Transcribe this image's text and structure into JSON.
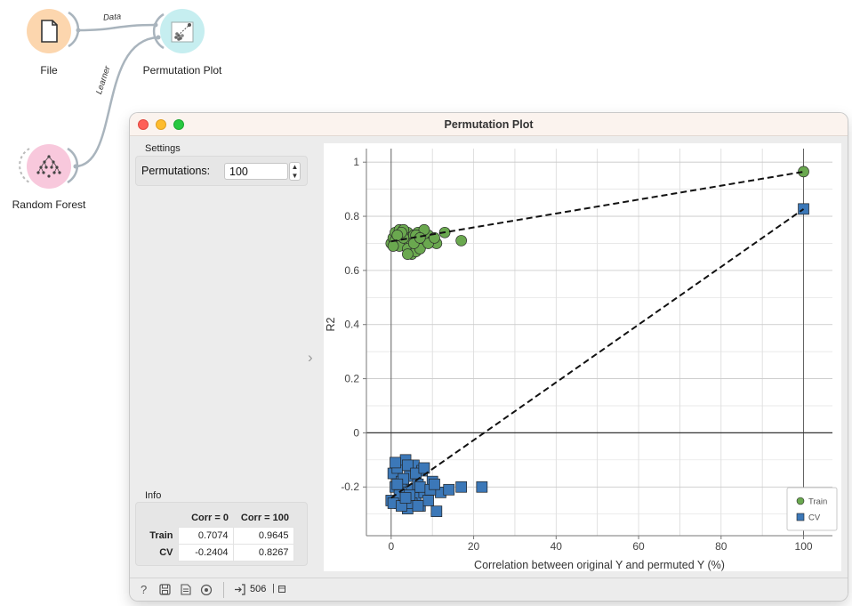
{
  "workflow": {
    "nodes": {
      "file": {
        "label": "File",
        "color": "#fcd6ae"
      },
      "permutation_plot": {
        "label": "Permutation Plot",
        "color": "#c6eef0"
      },
      "random_forest": {
        "label": "Random Forest",
        "color": "#f8c8dc"
      }
    },
    "links": {
      "data": "Data",
      "learner": "Learner"
    }
  },
  "window": {
    "title": "Permutation Plot"
  },
  "settings": {
    "group_label": "Settings",
    "permutations_label": "Permutations:",
    "permutations_value": "100"
  },
  "info": {
    "group_label": "Info",
    "headers": [
      "",
      "Corr = 0",
      "Corr = 100"
    ],
    "rows": [
      {
        "label": "Train",
        "corr0": "0.7074",
        "corr100": "0.9645"
      },
      {
        "label": "CV",
        "corr0": "-0.2404",
        "corr100": "0.8267"
      }
    ]
  },
  "status_bar": {
    "output_count": "506"
  },
  "chart_data": {
    "type": "scatter",
    "title": "",
    "xlabel": "Correlation between original Y and permuted Y (%)",
    "ylabel": "R2",
    "xlim": [
      -6,
      107
    ],
    "ylim": [
      -0.38,
      1.05
    ],
    "xticks": [
      0,
      20,
      40,
      60,
      80,
      100
    ],
    "yticks": [
      -0.2,
      0,
      0.2,
      0.4,
      0.6,
      0.8,
      1
    ],
    "ytick_labels": [
      "-0.2",
      "0",
      "0.2",
      "0.4",
      "0.6",
      "0.8",
      "1"
    ],
    "grid": true,
    "legend_position": "bottom-right",
    "series": [
      {
        "name": "Train",
        "marker": "circle",
        "color": "#6aa84f",
        "points": [
          [
            0,
            0.7
          ],
          [
            0.5,
            0.72
          ],
          [
            1,
            0.74
          ],
          [
            1.5,
            0.7
          ],
          [
            2,
            0.75
          ],
          [
            2.5,
            0.71
          ],
          [
            3,
            0.73
          ],
          [
            3.5,
            0.69
          ],
          [
            4,
            0.74
          ],
          [
            4.5,
            0.72
          ],
          [
            5,
            0.7
          ],
          [
            5.5,
            0.73
          ],
          [
            6,
            0.71
          ],
          [
            6.5,
            0.74
          ],
          [
            7,
            0.69
          ],
          [
            7.5,
            0.72
          ],
          [
            8,
            0.7
          ],
          [
            9,
            0.73
          ],
          [
            10,
            0.71
          ],
          [
            11,
            0.7
          ],
          [
            1,
            0.71
          ],
          [
            2,
            0.69
          ],
          [
            3,
            0.72
          ],
          [
            4,
            0.68
          ],
          [
            5,
            0.66
          ],
          [
            6,
            0.67
          ],
          [
            7,
            0.68
          ],
          [
            8,
            0.75
          ],
          [
            3,
            0.75
          ],
          [
            4,
            0.66
          ],
          [
            6,
            0.73
          ],
          [
            9,
            0.7
          ],
          [
            13,
            0.74
          ],
          [
            17,
            0.71
          ],
          [
            0.5,
            0.69
          ],
          [
            2.5,
            0.74
          ],
          [
            5.5,
            0.7
          ],
          [
            7,
            0.72
          ],
          [
            10.5,
            0.72
          ],
          [
            1.5,
            0.73
          ],
          [
            100,
            0.965
          ]
        ]
      },
      {
        "name": "CV",
        "marker": "square",
        "color": "#3c78b8",
        "points": [
          [
            0,
            -0.25
          ],
          [
            0.5,
            -0.15
          ],
          [
            1,
            -0.2
          ],
          [
            1.5,
            -0.13
          ],
          [
            2,
            -0.26
          ],
          [
            2.5,
            -0.18
          ],
          [
            3,
            -0.22
          ],
          [
            3.5,
            -0.1
          ],
          [
            4,
            -0.28
          ],
          [
            4.5,
            -0.16
          ],
          [
            5,
            -0.21
          ],
          [
            5.5,
            -0.12
          ],
          [
            6,
            -0.24
          ],
          [
            6.5,
            -0.19
          ],
          [
            7,
            -0.27
          ],
          [
            7.5,
            -0.14
          ],
          [
            8,
            -0.22
          ],
          [
            9,
            -0.25
          ],
          [
            10,
            -0.18
          ],
          [
            11,
            -0.29
          ],
          [
            1,
            -0.11
          ],
          [
            2,
            -0.23
          ],
          [
            3,
            -0.17
          ],
          [
            4,
            -0.12
          ],
          [
            5,
            -0.26
          ],
          [
            6,
            -0.15
          ],
          [
            7,
            -0.2
          ],
          [
            8,
            -0.13
          ],
          [
            12,
            -0.22
          ],
          [
            14,
            -0.21
          ],
          [
            17,
            -0.2
          ],
          [
            22,
            -0.2
          ],
          [
            0.5,
            -0.26
          ],
          [
            2.5,
            -0.27
          ],
          [
            4.5,
            -0.23
          ],
          [
            6.5,
            -0.27
          ],
          [
            9.5,
            -0.21
          ],
          [
            10.5,
            -0.19
          ],
          [
            1.5,
            -0.19
          ],
          [
            3.5,
            -0.24
          ],
          [
            100,
            0.827
          ]
        ]
      }
    ],
    "fit_lines": [
      {
        "series": "Train",
        "from": [
          0,
          0.7074
        ],
        "to": [
          100,
          0.9645
        ]
      },
      {
        "series": "CV",
        "from": [
          0,
          -0.2404
        ],
        "to": [
          100,
          0.8267
        ]
      }
    ]
  }
}
